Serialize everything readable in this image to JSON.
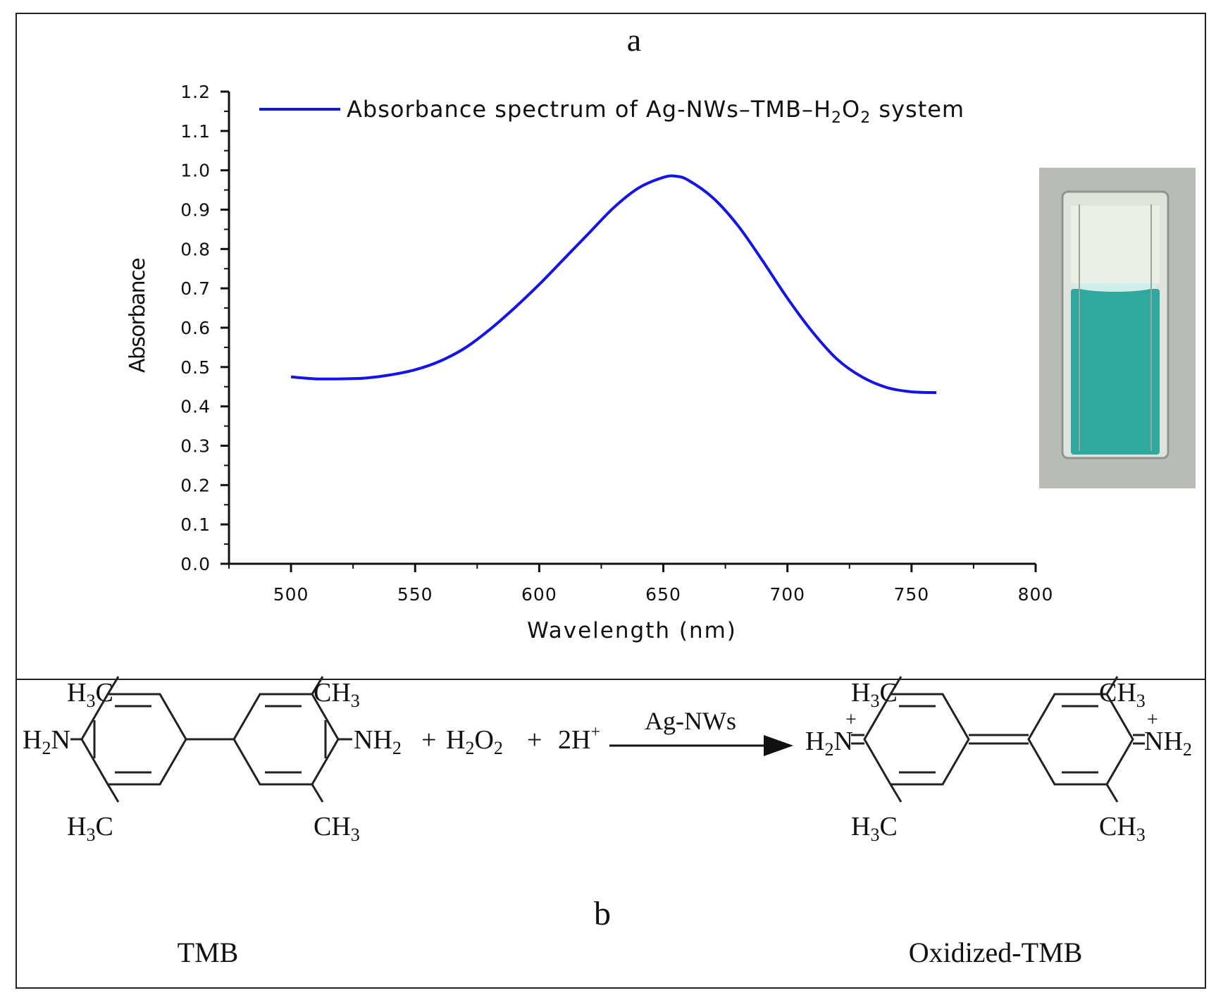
{
  "panel_a": {
    "label": "a",
    "photo": {
      "description_icon": "cuvette-photo-icon",
      "liquid_color": "#2fa89e",
      "glass_color": "#e9ece6",
      "background_color": "#b9bbb6"
    }
  },
  "chart_data": {
    "type": "line",
    "title": "",
    "xlabel": "Wavelength (nm)",
    "ylabel": "Absorbance",
    "xlim": [
      475,
      800
    ],
    "ylim": [
      0.0,
      1.2
    ],
    "xticks": [
      "500",
      "550",
      "600",
      "650",
      "700",
      "750",
      "800"
    ],
    "yticks": [
      "0.0",
      "0.1",
      "0.2",
      "0.3",
      "0.4",
      "0.5",
      "0.6",
      "0.7",
      "0.8",
      "0.9",
      "1.0",
      "1.1",
      "1.2"
    ],
    "grid": false,
    "legend": "top-left",
    "series": [
      {
        "name_parts": {
          "prefix": "Absorbance spectrum of Ag-NWs–TMB–H",
          "sub1": "2",
          "mid": "O",
          "sub2": "2",
          "suffix": " system"
        },
        "color": "#1414e6",
        "x": [
          500,
          510,
          520,
          530,
          540,
          550,
          560,
          570,
          580,
          590,
          600,
          610,
          620,
          630,
          640,
          650,
          655,
          660,
          670,
          680,
          690,
          700,
          710,
          720,
          730,
          740,
          750,
          760
        ],
        "y": [
          0.475,
          0.47,
          0.47,
          0.472,
          0.48,
          0.493,
          0.515,
          0.548,
          0.595,
          0.65,
          0.71,
          0.775,
          0.84,
          0.905,
          0.955,
          0.982,
          0.985,
          0.975,
          0.93,
          0.86,
          0.77,
          0.675,
          0.59,
          0.52,
          0.475,
          0.448,
          0.437,
          0.435
        ]
      }
    ]
  },
  "panel_b": {
    "label": "b",
    "reactant_name": "TMB",
    "product_name": "Oxidized-TMB",
    "catalyst": "Ag-NWs",
    "plus": "+",
    "h2o2": {
      "main": "H",
      "sub1": "2",
      "mid": "O",
      "sub2": "2"
    },
    "protons": {
      "coef": "2H",
      "sup": "+"
    },
    "ch3": {
      "main": "CH",
      "sub": "3"
    },
    "h3c": {
      "main": "H",
      "sub": "3",
      "tail": "C"
    },
    "nh2": {
      "main": "NH",
      "sub": "2"
    },
    "h2n": {
      "main": "H",
      "sub": "2",
      "tail": "N"
    },
    "charge": "+"
  }
}
